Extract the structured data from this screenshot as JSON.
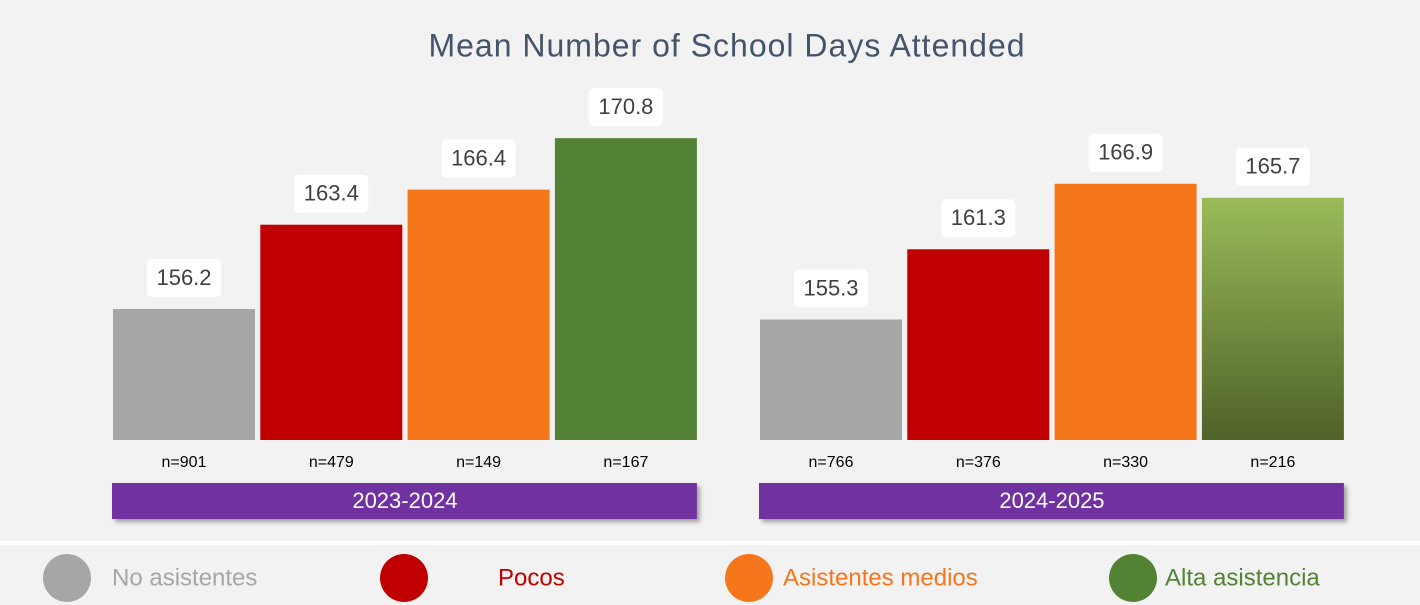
{
  "chart_data": {
    "type": "bar",
    "title": "Mean Number of School Days Attended",
    "categories": [
      "2023-2024",
      "2024-2025"
    ],
    "series": [
      {
        "name": "No asistentes",
        "color": "#a6a6a6",
        "values": [
          156.2,
          155.3
        ],
        "n_labels": [
          "n=901",
          "n=766"
        ]
      },
      {
        "name": "Pocos",
        "color": "#c00000",
        "values": [
          163.4,
          161.3
        ],
        "n_labels": [
          "n=479",
          "n=376"
        ]
      },
      {
        "name": "Asistentes medios",
        "color": "#f5761b",
        "values": [
          166.4,
          166.9
        ],
        "n_labels": [
          "n=149",
          "n=330"
        ]
      },
      {
        "name": "Alta asistencia",
        "color": "#548235",
        "values": [
          170.8,
          165.7
        ],
        "n_labels": [
          "n=167",
          "n=216"
        ]
      }
    ],
    "ylim": [
      145,
      175
    ],
    "category_color": "#7030a0"
  }
}
